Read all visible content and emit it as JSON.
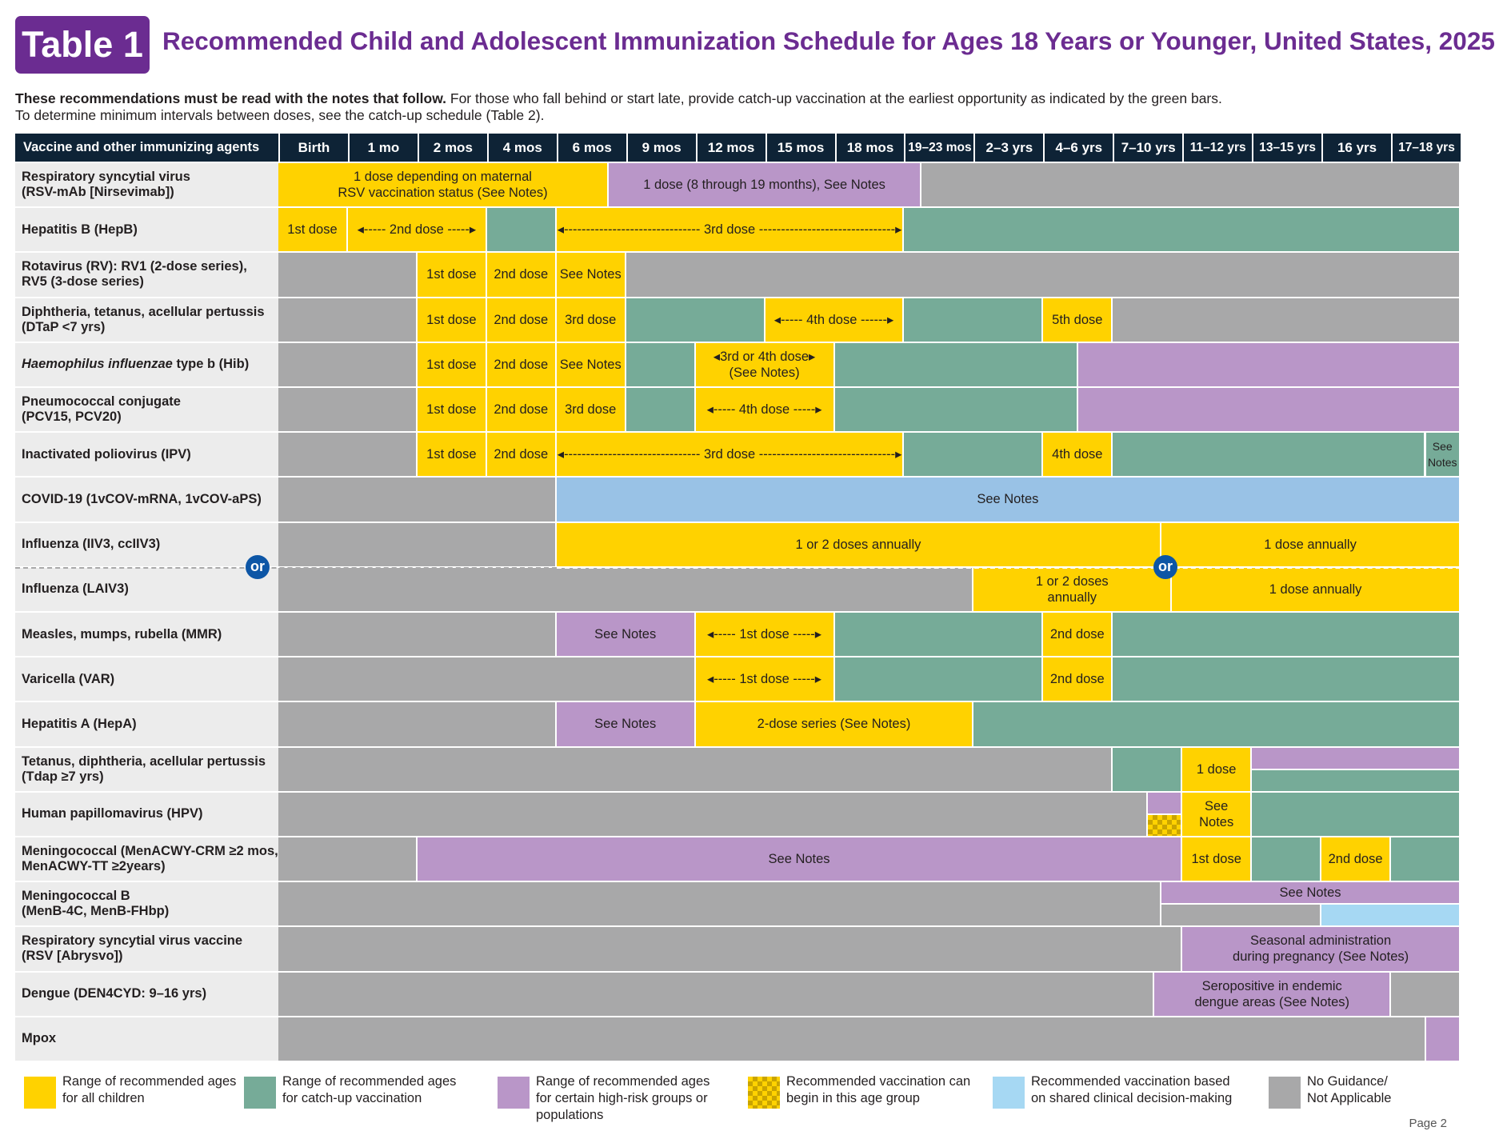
{
  "badge": "Table 1",
  "title": "Recommended Child and Adolescent Immunization Schedule for Ages 18 Years or Younger, United States, 2025",
  "intro": {
    "bold": "These recommendations must be read with the notes that follow.",
    "line1_rest": " For those who fall behind or start late, provide catch-up vaccination at the earliest opportunity as indicated by the green bars.",
    "line2": "To determine minimum intervals between doses, see the catch-up schedule (Table 2)."
  },
  "header": {
    "first": "Vaccine and other immunizing agents",
    "columns": [
      "Birth",
      "1 mo",
      "2 mos",
      "4 mos",
      "6 mos",
      "9 mos",
      "12 mos",
      "15 mos",
      "18 mos",
      "19–23 mos",
      "2–3 yrs",
      "4–6 yrs",
      "7–10 yrs",
      "11–12 yrs",
      "13–15 yrs",
      "16 yrs",
      "17–18 yrs"
    ]
  },
  "rows": [
    {
      "label": [
        "Respiratory syncytial virus",
        "(RSV-mAb [Nirsevimab])"
      ],
      "bars": [
        {
          "s": 0,
          "e": 4.75,
          "c": "y",
          "t": "1 dose depending on maternal\nRSV vaccination status (See Notes)"
        },
        {
          "s": 4.75,
          "e": 9.25,
          "c": "p",
          "t": "1 dose (8 through 19 months), See Notes"
        },
        {
          "s": 9.25,
          "e": 17,
          "c": "n",
          "t": ""
        }
      ]
    },
    {
      "label": [
        "Hepatitis B (HepB)"
      ],
      "bars": [
        {
          "s": 0,
          "e": 1,
          "c": "y",
          "t": "1st dose"
        },
        {
          "s": 1,
          "e": 3,
          "c": "y",
          "t": "◂----- 2nd dose -----▸"
        },
        {
          "s": 3,
          "e": 4,
          "c": "g",
          "t": ""
        },
        {
          "s": 4,
          "e": 9,
          "c": "y",
          "t": "◂------------------------------- 3rd dose -------------------------------▸"
        },
        {
          "s": 9,
          "e": 17,
          "c": "g",
          "t": ""
        }
      ]
    },
    {
      "label": [
        "Rotavirus (RV): RV1 (2-dose series),",
        "RV5 (3-dose series)"
      ],
      "bars": [
        {
          "s": 0,
          "e": 2,
          "c": "n",
          "t": ""
        },
        {
          "s": 2,
          "e": 3,
          "c": "y",
          "t": "1st dose"
        },
        {
          "s": 3,
          "e": 4,
          "c": "y",
          "t": "2nd dose"
        },
        {
          "s": 4,
          "e": 5,
          "c": "y",
          "t": "See Notes"
        },
        {
          "s": 5,
          "e": 17,
          "c": "n",
          "t": ""
        }
      ]
    },
    {
      "label": [
        "Diphtheria, tetanus, acellular pertussis",
        "(DTaP <7 yrs)"
      ],
      "bars": [
        {
          "s": 0,
          "e": 2,
          "c": "n",
          "t": ""
        },
        {
          "s": 2,
          "e": 3,
          "c": "y",
          "t": "1st dose"
        },
        {
          "s": 3,
          "e": 4,
          "c": "y",
          "t": "2nd dose"
        },
        {
          "s": 4,
          "e": 5,
          "c": "y",
          "t": "3rd dose"
        },
        {
          "s": 5,
          "e": 7,
          "c": "g",
          "t": ""
        },
        {
          "s": 7,
          "e": 9,
          "c": "y",
          "t": "◂----- 4th dose ------▸"
        },
        {
          "s": 9,
          "e": 11,
          "c": "g",
          "t": ""
        },
        {
          "s": 11,
          "e": 12,
          "c": "y",
          "t": "5th dose"
        },
        {
          "s": 12,
          "e": 17,
          "c": "n",
          "t": ""
        }
      ]
    },
    {
      "label": [
        "Haemophilus influenzae type b (Hib)"
      ],
      "italic_prefix": "Haemophilus influenzae",
      "bars": [
        {
          "s": 0,
          "e": 2,
          "c": "n",
          "t": ""
        },
        {
          "s": 2,
          "e": 3,
          "c": "y",
          "t": "1st dose"
        },
        {
          "s": 3,
          "e": 4,
          "c": "y",
          "t": "2nd dose"
        },
        {
          "s": 4,
          "e": 5,
          "c": "y",
          "t": "See Notes"
        },
        {
          "s": 5,
          "e": 6,
          "c": "g",
          "t": ""
        },
        {
          "s": 6,
          "e": 8,
          "c": "y",
          "t": "◂3rd or 4th dose▸\n(See Notes)"
        },
        {
          "s": 8,
          "e": 11.5,
          "c": "g",
          "t": ""
        },
        {
          "s": 11.5,
          "e": 17,
          "c": "p",
          "t": ""
        }
      ]
    },
    {
      "label": [
        "Pneumococcal conjugate",
        "(PCV15, PCV20)"
      ],
      "bars": [
        {
          "s": 0,
          "e": 2,
          "c": "n",
          "t": ""
        },
        {
          "s": 2,
          "e": 3,
          "c": "y",
          "t": "1st dose"
        },
        {
          "s": 3,
          "e": 4,
          "c": "y",
          "t": "2nd dose"
        },
        {
          "s": 4,
          "e": 5,
          "c": "y",
          "t": "3rd dose"
        },
        {
          "s": 5,
          "e": 6,
          "c": "g",
          "t": ""
        },
        {
          "s": 6,
          "e": 8,
          "c": "y",
          "t": "◂----- 4th dose -----▸"
        },
        {
          "s": 8,
          "e": 11.5,
          "c": "g",
          "t": ""
        },
        {
          "s": 11.5,
          "e": 17,
          "c": "p",
          "t": ""
        }
      ]
    },
    {
      "label": [
        "Inactivated poliovirus (IPV)"
      ],
      "bars": [
        {
          "s": 0,
          "e": 2,
          "c": "n",
          "t": ""
        },
        {
          "s": 2,
          "e": 3,
          "c": "y",
          "t": "1st dose"
        },
        {
          "s": 3,
          "e": 4,
          "c": "y",
          "t": "2nd dose"
        },
        {
          "s": 4,
          "e": 9,
          "c": "y",
          "t": "◂------------------------------- 3rd dose -------------------------------▸"
        },
        {
          "s": 9,
          "e": 11,
          "c": "g",
          "t": ""
        },
        {
          "s": 11,
          "e": 12,
          "c": "y",
          "t": "4th dose"
        },
        {
          "s": 12,
          "e": 16.5,
          "c": "g",
          "t": ""
        },
        {
          "s": 16.5,
          "e": 17,
          "c": "g",
          "t": "See\nNotes",
          "small": true
        }
      ]
    },
    {
      "label": [
        "COVID-19 (1vCOV-mRNA, 1vCOV-aPS)"
      ],
      "bars": [
        {
          "s": 0,
          "e": 4,
          "c": "n",
          "t": ""
        },
        {
          "s": 4,
          "e": 17,
          "c": "b",
          "t": "See Notes"
        }
      ]
    },
    {
      "label": [
        "Influenza (IIV3, ccIIV3)"
      ],
      "bars": [
        {
          "s": 0,
          "e": 4,
          "c": "n",
          "t": ""
        },
        {
          "s": 4,
          "e": 12.7,
          "c": "y",
          "t": "1 or 2 doses annually"
        },
        {
          "s": 12.7,
          "e": 17,
          "c": "y",
          "t": "1 dose annually"
        }
      ]
    },
    {
      "label": [
        "Influenza (LAIV3)"
      ],
      "bars": [
        {
          "s": 0,
          "e": 10,
          "c": "n",
          "t": ""
        },
        {
          "s": 10,
          "e": 12.85,
          "c": "y",
          "t": "1 or 2 doses\nannually"
        },
        {
          "s": 12.85,
          "e": 17,
          "c": "y",
          "t": "1 dose annually"
        }
      ]
    },
    {
      "label": [
        "Measles, mumps, rubella (MMR)"
      ],
      "bars": [
        {
          "s": 0,
          "e": 4,
          "c": "n",
          "t": ""
        },
        {
          "s": 4,
          "e": 6,
          "c": "p",
          "t": "See Notes"
        },
        {
          "s": 6,
          "e": 8,
          "c": "y",
          "t": "◂----- 1st dose -----▸"
        },
        {
          "s": 8,
          "e": 11,
          "c": "g",
          "t": ""
        },
        {
          "s": 11,
          "e": 12,
          "c": "y",
          "t": "2nd dose"
        },
        {
          "s": 12,
          "e": 17,
          "c": "g",
          "t": ""
        }
      ]
    },
    {
      "label": [
        "Varicella (VAR)"
      ],
      "bars": [
        {
          "s": 0,
          "e": 6,
          "c": "n",
          "t": ""
        },
        {
          "s": 6,
          "e": 8,
          "c": "y",
          "t": "◂----- 1st dose -----▸"
        },
        {
          "s": 8,
          "e": 11,
          "c": "g",
          "t": ""
        },
        {
          "s": 11,
          "e": 12,
          "c": "y",
          "t": "2nd dose"
        },
        {
          "s": 12,
          "e": 17,
          "c": "g",
          "t": ""
        }
      ]
    },
    {
      "label": [
        "Hepatitis A (HepA)"
      ],
      "bars": [
        {
          "s": 0,
          "e": 4,
          "c": "n",
          "t": ""
        },
        {
          "s": 4,
          "e": 6,
          "c": "p",
          "t": "See Notes"
        },
        {
          "s": 6,
          "e": 10,
          "c": "y",
          "t": "2-dose series (See Notes)"
        },
        {
          "s": 10,
          "e": 17,
          "c": "g",
          "t": ""
        }
      ]
    },
    {
      "label": [
        "Tetanus, diphtheria, acellular pertussis",
        "(Tdap ≥7 yrs)"
      ],
      "bars": [
        {
          "s": 0,
          "e": 12,
          "c": "n",
          "t": ""
        },
        {
          "s": 12,
          "e": 13,
          "c": "g",
          "t": ""
        },
        {
          "s": 13,
          "e": 14,
          "c": "y",
          "t": "1 dose"
        },
        {
          "s": 14,
          "e": 17,
          "c": "p",
          "t": "",
          "half": "top"
        },
        {
          "s": 14,
          "e": 17,
          "c": "g",
          "t": "",
          "half": "bottom"
        }
      ]
    },
    {
      "label": [
        "Human papillomavirus (HPV)"
      ],
      "bars": [
        {
          "s": 0,
          "e": 12.5,
          "c": "n",
          "t": ""
        },
        {
          "s": 12.5,
          "e": 13,
          "c": "p",
          "t": "",
          "half": "top"
        },
        {
          "s": 12.5,
          "e": 13,
          "c": "chk",
          "t": "",
          "half": "bottom"
        },
        {
          "s": 13,
          "e": 14,
          "c": "y",
          "t": "See\nNotes"
        },
        {
          "s": 14,
          "e": 17,
          "c": "g",
          "t": ""
        }
      ]
    },
    {
      "label": [
        "Meningococcal (MenACWY-CRM ≥2 mos,",
        "MenACWY-TT ≥2years)"
      ],
      "bars": [
        {
          "s": 0,
          "e": 2,
          "c": "n",
          "t": ""
        },
        {
          "s": 2,
          "e": 13,
          "c": "p",
          "t": "See Notes"
        },
        {
          "s": 13,
          "e": 14,
          "c": "y",
          "t": "1st dose"
        },
        {
          "s": 14,
          "e": 15,
          "c": "g",
          "t": ""
        },
        {
          "s": 15,
          "e": 16,
          "c": "y",
          "t": "2nd dose"
        },
        {
          "s": 16,
          "e": 17,
          "c": "g",
          "t": ""
        }
      ]
    },
    {
      "label": [
        "Meningococcal B",
        "(MenB-4C, MenB-FHbp)"
      ],
      "bars": [
        {
          "s": 0,
          "e": 12.7,
          "c": "n",
          "t": ""
        },
        {
          "s": 12.7,
          "e": 17,
          "c": "p",
          "t": "See Notes",
          "half": "top"
        },
        {
          "s": 12.7,
          "e": 15,
          "c": "n",
          "t": "",
          "half": "bottom"
        },
        {
          "s": 15,
          "e": 17,
          "c": "lb",
          "t": "",
          "half": "bottom"
        }
      ]
    },
    {
      "label": [
        "Respiratory syncytial virus vaccine",
        "(RSV [Abrysvo])"
      ],
      "bars": [
        {
          "s": 0,
          "e": 13,
          "c": "n",
          "t": ""
        },
        {
          "s": 13,
          "e": 17,
          "c": "p",
          "t": "Seasonal administration\nduring pregnancy (See Notes)"
        }
      ]
    },
    {
      "label": [
        "Dengue (DEN4CYD: 9–16 yrs)"
      ],
      "bars": [
        {
          "s": 0,
          "e": 12.6,
          "c": "n",
          "t": ""
        },
        {
          "s": 12.6,
          "e": 16,
          "c": "p",
          "t": "Seropositive in endemic\ndengue areas (See Notes)"
        },
        {
          "s": 16,
          "e": 17,
          "c": "n",
          "t": ""
        }
      ]
    },
    {
      "label": [
        "Mpox"
      ],
      "bars": [
        {
          "s": 0,
          "e": 16.5,
          "c": "n",
          "t": ""
        },
        {
          "s": 16.5,
          "e": 17,
          "c": "p",
          "t": ""
        }
      ]
    }
  ],
  "or_label": "or",
  "legend": [
    {
      "c": "y",
      "text": "Range of recommended ages\nfor all children"
    },
    {
      "c": "g",
      "text": "Range of recommended ages\nfor catch-up vaccination"
    },
    {
      "c": "p",
      "text": "Range of recommended ages\nfor certain high-risk groups or\npopulations"
    },
    {
      "c": "chk",
      "text": "Recommended vaccination can\nbegin in this age group"
    },
    {
      "c": "lb",
      "text": "Recommended vaccination based\non shared clinical decision-making"
    },
    {
      "c": "n",
      "text": "No Guidance/\nNot Applicable"
    }
  ],
  "page_label": "Page 2",
  "colors": {
    "purple_title": "#6b2c91",
    "header_bg": "#0e2336",
    "yellow": "#ffd200",
    "green": "#76ab98",
    "purple": "#b996c8",
    "gray": "#a8a8a9",
    "blue": "#99c2e6",
    "light_blue": "#a6d8f3",
    "or_blue": "#0d56a6"
  }
}
